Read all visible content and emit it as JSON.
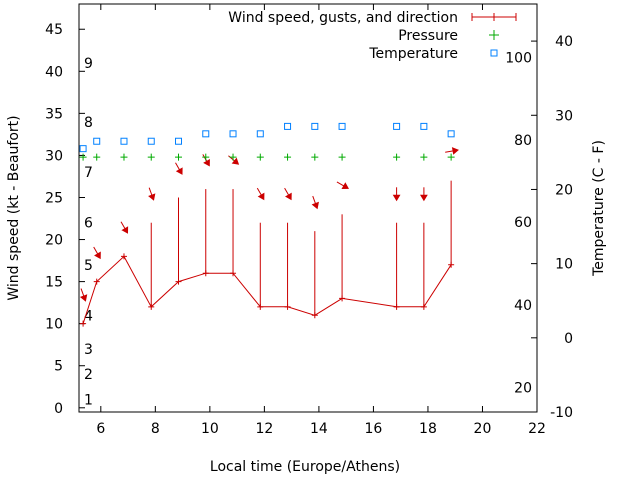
{
  "chart_data": {
    "type": "line",
    "xlabel": "Local time (Europe/Athens)",
    "ylabel": "Wind speed (kt - Beaufort)",
    "y2label": "Temperature (C - F)",
    "xlim": [
      5.2,
      22
    ],
    "ylim": [
      -0.5,
      48
    ],
    "y2lim": [
      -10,
      45
    ],
    "xticks": [
      6,
      8,
      10,
      12,
      14,
      16,
      18,
      20,
      22
    ],
    "yticks": [
      0,
      5,
      10,
      15,
      20,
      25,
      30,
      35,
      40,
      45
    ],
    "y2ticks": [
      -10,
      0,
      10,
      20,
      30,
      40
    ],
    "beaufort_scale": [
      {
        "label": "1",
        "kt": 1
      },
      {
        "label": "2",
        "kt": 4
      },
      {
        "label": "3",
        "kt": 7
      },
      {
        "label": "4",
        "kt": 11
      },
      {
        "label": "5",
        "kt": 17
      },
      {
        "label": "6",
        "kt": 22
      },
      {
        "label": "7",
        "kt": 28
      },
      {
        "label": "8",
        "kt": 34
      },
      {
        "label": "9",
        "kt": 41
      }
    ],
    "fahrenheit_scale": [
      {
        "label": "20",
        "celsius": -6.7
      },
      {
        "label": "40",
        "celsius": 4.4
      },
      {
        "label": "60",
        "celsius": 15.6
      },
      {
        "label": "80",
        "celsius": 26.7
      },
      {
        "label": "100",
        "celsius": 37.8
      }
    ],
    "legend": {
      "position": "top-right",
      "wind": "Wind speed, gusts, and direction",
      "pressure": "Pressure",
      "temperature": "Temperature"
    },
    "colors": {
      "wind": "#cc0000",
      "pressure": "#00aa00",
      "temperature": "#0080ff"
    },
    "wind": {
      "x": [
        5.35,
        5.85,
        6.85,
        7.85,
        8.85,
        9.85,
        10.85,
        11.85,
        12.85,
        13.85,
        14.85,
        16.85,
        17.85,
        18.85
      ],
      "speed": [
        10,
        15,
        18,
        12,
        15,
        16,
        16,
        12,
        12,
        11,
        13,
        12,
        12,
        17
      ],
      "gust": [
        null,
        null,
        null,
        22,
        25,
        26,
        26,
        22,
        22,
        21,
        23,
        22,
        22,
        27
      ]
    },
    "wind_direction": {
      "x": [
        5.35,
        5.85,
        6.85,
        7.85,
        8.85,
        9.85,
        10.85,
        11.85,
        12.85,
        13.85,
        14.85,
        16.85,
        17.85,
        18.85
      ],
      "y": [
        13.5,
        18.5,
        21.5,
        25.5,
        28.5,
        29.5,
        29.5,
        25.5,
        25.5,
        24.5,
        26.5,
        25.5,
        25.5,
        30.5
      ],
      "from_deg": [
        340,
        330,
        330,
        340,
        330,
        330,
        310,
        330,
        330,
        340,
        300,
        360,
        360,
        260
      ]
    },
    "pressure": {
      "x": [
        5.35,
        5.85,
        6.85,
        7.85,
        8.85,
        9.85,
        10.85,
        11.85,
        12.85,
        13.85,
        14.85,
        16.85,
        17.85,
        18.85
      ],
      "y": [
        29.8,
        29.8,
        29.8,
        29.8,
        29.8,
        29.8,
        29.8,
        29.8,
        29.8,
        29.8,
        29.8,
        29.8,
        29.8,
        29.8
      ]
    },
    "temperature": {
      "x": [
        5.35,
        5.85,
        6.85,
        7.85,
        8.85,
        9.85,
        10.85,
        11.85,
        12.85,
        13.85,
        14.85,
        16.85,
        17.85,
        18.85
      ],
      "celsius": [
        25.5,
        26.5,
        26.5,
        26.5,
        26.5,
        27.5,
        27.5,
        27.5,
        28.5,
        28.5,
        28.5,
        28.5,
        28.5,
        27.5
      ]
    }
  }
}
